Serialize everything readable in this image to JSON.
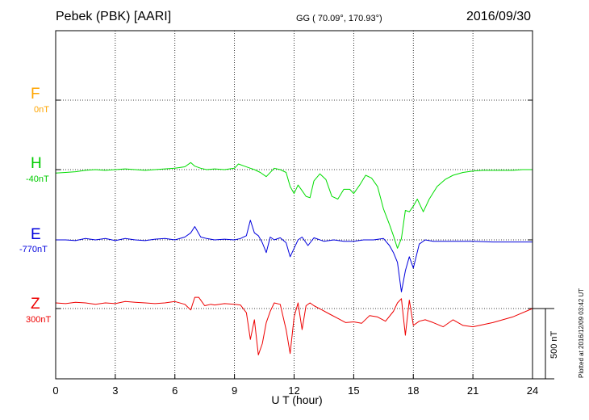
{
  "header": {
    "station": "Pebek (PBK)  [AARI]",
    "coords": "GG ( 70.09°, 170.93°)",
    "date": "2016/09/30"
  },
  "plotted_note": "Plotted at 2016/12/09 03:42 UT",
  "colors": {
    "F": "#ffa500",
    "H": "#00dd00",
    "E": "#0000dd",
    "Z": "#ee0000",
    "axis": "#000000"
  },
  "chart_data": {
    "type": "line",
    "title": "Pebek (PBK)  [AARI]",
    "xlabel": "U T (hour)",
    "ylabel": "",
    "xlim": [
      0,
      24
    ],
    "x_ticks": [
      0,
      3,
      6,
      9,
      12,
      15,
      18,
      21,
      24
    ],
    "grid": true,
    "scale_bar": {
      "label": "500 nT",
      "value_nT": 500
    },
    "components": [
      {
        "name": "F",
        "baseline": "0nT",
        "data_available": false
      },
      {
        "name": "H",
        "baseline": "-40nT"
      },
      {
        "name": "E",
        "baseline": "-770nT"
      },
      {
        "name": "Z",
        "baseline": "300nT"
      }
    ],
    "series": [
      {
        "name": "H",
        "unit": "nT",
        "x": [
          0,
          0.5,
          1,
          1.5,
          2,
          2.5,
          3,
          3.5,
          4,
          4.5,
          5,
          5.5,
          6,
          6.5,
          6.8,
          7,
          7.3,
          7.6,
          8,
          8.5,
          9,
          9.2,
          9.5,
          9.8,
          10,
          10.3,
          10.6,
          11,
          11.3,
          11.6,
          11.8,
          12,
          12.2,
          12.4,
          12.6,
          12.8,
          13,
          13.3,
          13.6,
          13.9,
          14.2,
          14.5,
          14.8,
          15,
          15.3,
          15.6,
          15.9,
          16.2,
          16.5,
          16.8,
          17,
          17.2,
          17.4,
          17.6,
          17.8,
          18,
          18.2,
          18.5,
          18.8,
          19.2,
          19.6,
          20,
          20.5,
          21,
          21.5,
          22,
          22.5,
          23,
          23.5,
          24
        ],
        "y": [
          -25,
          -20,
          -15,
          -5,
          0,
          -5,
          0,
          5,
          0,
          -5,
          0,
          5,
          10,
          20,
          50,
          25,
          10,
          0,
          5,
          0,
          10,
          40,
          25,
          10,
          0,
          -20,
          -50,
          10,
          0,
          -20,
          -120,
          -170,
          -110,
          -150,
          -190,
          -200,
          -80,
          -30,
          -70,
          -190,
          -210,
          -140,
          -140,
          -170,
          -110,
          -40,
          -60,
          -120,
          -280,
          -390,
          -470,
          -560,
          -490,
          -290,
          -300,
          -260,
          -210,
          -300,
          -210,
          -120,
          -70,
          -40,
          -20,
          -10,
          -5,
          -5,
          -5,
          -5,
          0,
          0
        ]
      },
      {
        "name": "E",
        "unit": "nT",
        "x": [
          0,
          0.5,
          1,
          1.5,
          2,
          2.5,
          3,
          3.5,
          4,
          4.5,
          5,
          5.5,
          6,
          6.5,
          6.8,
          7,
          7.3,
          7.6,
          8,
          8.5,
          9,
          9.3,
          9.6,
          9.8,
          10,
          10.2,
          10.4,
          10.6,
          10.8,
          11,
          11.3,
          11.6,
          11.8,
          12,
          12.2,
          12.4,
          12.7,
          13,
          13.5,
          14,
          14.5,
          15,
          15.5,
          16,
          16.5,
          16.8,
          17,
          17.2,
          17.4,
          17.6,
          17.8,
          18,
          18.3,
          18.6,
          19,
          19.5,
          20,
          21,
          22,
          23,
          24
        ],
        "y": [
          0,
          0,
          -5,
          10,
          0,
          10,
          -5,
          10,
          0,
          -5,
          5,
          10,
          0,
          20,
          50,
          95,
          20,
          10,
          0,
          5,
          0,
          10,
          30,
          140,
          50,
          30,
          -20,
          -90,
          20,
          0,
          15,
          -20,
          -120,
          -60,
          0,
          20,
          -40,
          15,
          -10,
          0,
          -10,
          -10,
          0,
          0,
          10,
          -40,
          -90,
          -160,
          -370,
          -220,
          -120,
          -200,
          -30,
          0,
          -10,
          -10,
          -10,
          -10,
          -15,
          -15,
          -15
        ]
      },
      {
        "name": "Z",
        "unit": "nT",
        "x": [
          0,
          0.5,
          1,
          1.5,
          2,
          2.5,
          3,
          3.5,
          4,
          4.5,
          5,
          5.5,
          6,
          6.5,
          6.8,
          7,
          7.2,
          7.5,
          7.8,
          8,
          8.5,
          9,
          9.3,
          9.6,
          9.8,
          10,
          10.2,
          10.4,
          10.6,
          10.8,
          11,
          11.3,
          11.6,
          11.8,
          12,
          12.2,
          12.4,
          12.6,
          12.8,
          13,
          13.4,
          13.8,
          14.2,
          14.6,
          15,
          15.4,
          15.8,
          16.2,
          16.6,
          17,
          17.2,
          17.4,
          17.6,
          17.8,
          18,
          18.3,
          18.6,
          19,
          19.5,
          20,
          20.5,
          21,
          22,
          23,
          24
        ],
        "y": [
          40,
          35,
          45,
          40,
          30,
          40,
          35,
          50,
          45,
          40,
          35,
          40,
          50,
          30,
          -10,
          80,
          80,
          20,
          30,
          25,
          35,
          30,
          25,
          -30,
          -220,
          -80,
          -330,
          -250,
          -100,
          -20,
          40,
          30,
          -150,
          -320,
          -60,
          40,
          -150,
          20,
          40,
          20,
          -10,
          -40,
          -70,
          -100,
          -95,
          -105,
          -50,
          -60,
          -90,
          -20,
          40,
          70,
          -190,
          60,
          -120,
          -90,
          -80,
          -100,
          -130,
          -80,
          -120,
          -130,
          -100,
          -60,
          0
        ]
      }
    ]
  }
}
